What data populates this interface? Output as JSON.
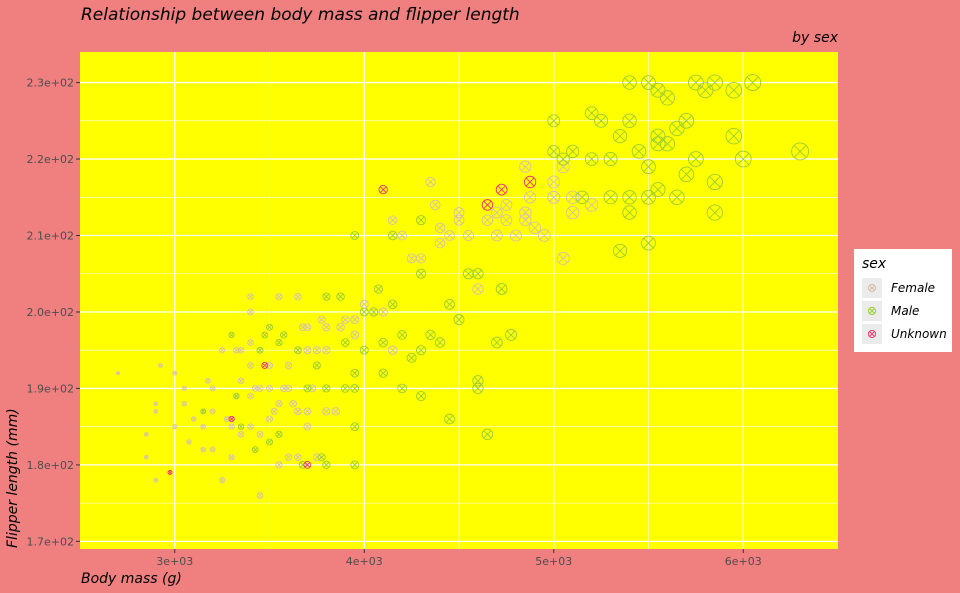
{
  "chart_data": {
    "type": "scatter",
    "title": "Relationship between body mass and flipper length",
    "subtitle": "by sex",
    "xlabel": "Body mass (g)",
    "ylabel": "Flipper length (mm)",
    "xlim": [
      2500,
      6500
    ],
    "ylim": [
      169,
      234
    ],
    "x_ticks": [
      3000,
      4000,
      5000,
      6000
    ],
    "x_tick_labels": [
      "3e+03",
      "4e+03",
      "5e+03",
      "6e+03"
    ],
    "y_ticks": [
      170,
      180,
      190,
      200,
      210,
      220,
      230
    ],
    "y_tick_labels": [
      "1.7e+02",
      "1.8e+02",
      "1.9e+02",
      "2.0e+02",
      "2.1e+02",
      "2.2e+02",
      "2.3e+02"
    ],
    "grid": true,
    "point_size": "body mass (not shown in legend)",
    "panel_background": "#ffff00",
    "plot_background": "#f08080",
    "legend": {
      "title": "sex",
      "placement": "right",
      "entries": [
        {
          "label": "Female",
          "color": "#d4c2a6"
        },
        {
          "label": "Male",
          "color": "#9acd32"
        },
        {
          "label": "Unknown",
          "color": "#e9386f"
        }
      ]
    },
    "series": [
      {
        "name": "Female",
        "color": "#d4c2a6",
        "points": [
          [
            2700,
            192
          ],
          [
            2850,
            181
          ],
          [
            2850,
            184
          ],
          [
            2900,
            187
          ],
          [
            2900,
            188
          ],
          [
            2900,
            178
          ],
          [
            2925,
            193
          ],
          [
            3000,
            185
          ],
          [
            3000,
            192
          ],
          [
            3050,
            190
          ],
          [
            3050,
            188
          ],
          [
            3075,
            183
          ],
          [
            3100,
            186
          ],
          [
            3150,
            187
          ],
          [
            3150,
            185
          ],
          [
            3150,
            182
          ],
          [
            3175,
            191
          ],
          [
            3200,
            187
          ],
          [
            3200,
            182
          ],
          [
            3200,
            190
          ],
          [
            3250,
            195
          ],
          [
            3250,
            178
          ],
          [
            3275,
            186
          ],
          [
            3300,
            186
          ],
          [
            3300,
            181
          ],
          [
            3300,
            185
          ],
          [
            3325,
            189
          ],
          [
            3325,
            195
          ],
          [
            3350,
            191
          ],
          [
            3350,
            195
          ],
          [
            3350,
            184
          ],
          [
            3400,
            196
          ],
          [
            3400,
            202
          ],
          [
            3400,
            200
          ],
          [
            3400,
            189
          ],
          [
            3400,
            193
          ],
          [
            3400,
            185
          ],
          [
            3425,
            190
          ],
          [
            3450,
            176
          ],
          [
            3450,
            195
          ],
          [
            3450,
            184
          ],
          [
            3450,
            190
          ],
          [
            3500,
            193
          ],
          [
            3500,
            190
          ],
          [
            3500,
            186
          ],
          [
            3525,
            187
          ],
          [
            3550,
            188
          ],
          [
            3550,
            202
          ],
          [
            3550,
            180
          ],
          [
            3575,
            190
          ],
          [
            3600,
            181
          ],
          [
            3600,
            190
          ],
          [
            3600,
            193
          ],
          [
            3625,
            188
          ],
          [
            3650,
            181
          ],
          [
            3650,
            187
          ],
          [
            3650,
            195
          ],
          [
            3675,
            198
          ],
          [
            3700,
            185
          ],
          [
            3700,
            187
          ],
          [
            3700,
            195
          ],
          [
            3700,
            198
          ],
          [
            3725,
            190
          ],
          [
            3750,
            181
          ],
          [
            3775,
            199
          ],
          [
            3800,
            187
          ],
          [
            3800,
            195
          ],
          [
            3800,
            198
          ],
          [
            3850,
            187
          ],
          [
            3875,
            198
          ],
          [
            3900,
            199
          ],
          [
            3950,
            197
          ],
          [
            3950,
            199
          ],
          [
            4000,
            201
          ],
          [
            4050,
            200
          ],
          [
            4100,
            200
          ],
          [
            4150,
            195
          ],
          [
            4200,
            210
          ],
          [
            4250,
            207
          ],
          [
            4300,
            207
          ],
          [
            4350,
            217
          ],
          [
            4375,
            214
          ],
          [
            4400,
            209
          ],
          [
            4400,
            211
          ],
          [
            4450,
            210
          ],
          [
            4500,
            213
          ],
          [
            4550,
            210
          ],
          [
            4600,
            203
          ],
          [
            4650,
            212
          ],
          [
            4700,
            213
          ],
          [
            4700,
            210
          ],
          [
            4750,
            214
          ],
          [
            4750,
            212
          ],
          [
            4800,
            210
          ],
          [
            4850,
            219
          ],
          [
            4850,
            212
          ],
          [
            4875,
            215
          ],
          [
            4900,
            211
          ],
          [
            4950,
            210
          ],
          [
            5000,
            217
          ],
          [
            5000,
            215
          ],
          [
            5050,
            219
          ],
          [
            5100,
            213
          ],
          [
            5200,
            214
          ],
          [
            5050,
            207
          ],
          [
            3650,
            202
          ],
          [
            3750,
            195
          ],
          [
            4150,
            212
          ],
          [
            4500,
            212
          ],
          [
            4850,
            213
          ],
          [
            5000,
            215
          ],
          [
            5100,
            215
          ]
        ]
      },
      {
        "name": "Male",
        "color": "#9acd32",
        "points": [
          [
            3150,
            187
          ],
          [
            3300,
            197
          ],
          [
            3325,
            189
          ],
          [
            3350,
            185
          ],
          [
            3425,
            182
          ],
          [
            3450,
            195
          ],
          [
            3475,
            197
          ],
          [
            3500,
            198
          ],
          [
            3500,
            183
          ],
          [
            3550,
            184
          ],
          [
            3550,
            196
          ],
          [
            3575,
            197
          ],
          [
            3650,
            195
          ],
          [
            3675,
            180
          ],
          [
            3700,
            190
          ],
          [
            3750,
            193
          ],
          [
            3775,
            181
          ],
          [
            3800,
            190
          ],
          [
            3800,
            202
          ],
          [
            3800,
            180
          ],
          [
            3875,
            202
          ],
          [
            3900,
            196
          ],
          [
            3900,
            190
          ],
          [
            3950,
            190
          ],
          [
            3950,
            192
          ],
          [
            3950,
            185
          ],
          [
            3950,
            180
          ],
          [
            4000,
            195
          ],
          [
            4050,
            200
          ],
          [
            4075,
            203
          ],
          [
            4100,
            196
          ],
          [
            4100,
            192
          ],
          [
            4150,
            201
          ],
          [
            4200,
            197
          ],
          [
            4200,
            190
          ],
          [
            4250,
            194
          ],
          [
            4300,
            189
          ],
          [
            4300,
            195
          ],
          [
            4350,
            197
          ],
          [
            4400,
            196
          ],
          [
            4450,
            186
          ],
          [
            4450,
            201
          ],
          [
            4500,
            199
          ],
          [
            4550,
            205
          ],
          [
            4600,
            191
          ],
          [
            4600,
            190
          ],
          [
            4650,
            184
          ],
          [
            4700,
            196
          ],
          [
            4725,
            203
          ],
          [
            4775,
            197
          ],
          [
            3950,
            210
          ],
          [
            4000,
            200
          ],
          [
            4150,
            210
          ],
          [
            4300,
            205
          ],
          [
            4300,
            212
          ],
          [
            4600,
            205
          ],
          [
            5000,
            221
          ],
          [
            5000,
            225
          ],
          [
            5050,
            220
          ],
          [
            5100,
            221
          ],
          [
            5150,
            215
          ],
          [
            5200,
            226
          ],
          [
            5250,
            225
          ],
          [
            5300,
            215
          ],
          [
            5300,
            220
          ],
          [
            5350,
            223
          ],
          [
            5400,
            213
          ],
          [
            5400,
            225
          ],
          [
            5400,
            230
          ],
          [
            5450,
            221
          ],
          [
            5500,
            219
          ],
          [
            5500,
            230
          ],
          [
            5550,
            216
          ],
          [
            5550,
            229
          ],
          [
            5600,
            228
          ],
          [
            5650,
            224
          ],
          [
            5700,
            225
          ],
          [
            5750,
            220
          ],
          [
            5800,
            229
          ],
          [
            5850,
            230
          ],
          [
            5950,
            223
          ],
          [
            6000,
            220
          ],
          [
            6050,
            230
          ],
          [
            6300,
            221
          ],
          [
            5350,
            208
          ],
          [
            5500,
            209
          ],
          [
            5700,
            218
          ],
          [
            5850,
            217
          ],
          [
            5550,
            223
          ],
          [
            5200,
            220
          ],
          [
            5500,
            215
          ],
          [
            5400,
            215
          ],
          [
            5650,
            215
          ],
          [
            5850,
            213
          ],
          [
            5550,
            222
          ],
          [
            5600,
            222
          ],
          [
            5750,
            230
          ],
          [
            5950,
            229
          ]
        ]
      },
      {
        "name": "Unknown",
        "color": "#e9386f",
        "points": [
          [
            2975,
            179
          ],
          [
            3300,
            186
          ],
          [
            3475,
            193
          ],
          [
            3700,
            180
          ],
          [
            4100,
            216
          ],
          [
            4650,
            214
          ],
          [
            4725,
            216
          ],
          [
            4875,
            217
          ]
        ]
      }
    ]
  }
}
